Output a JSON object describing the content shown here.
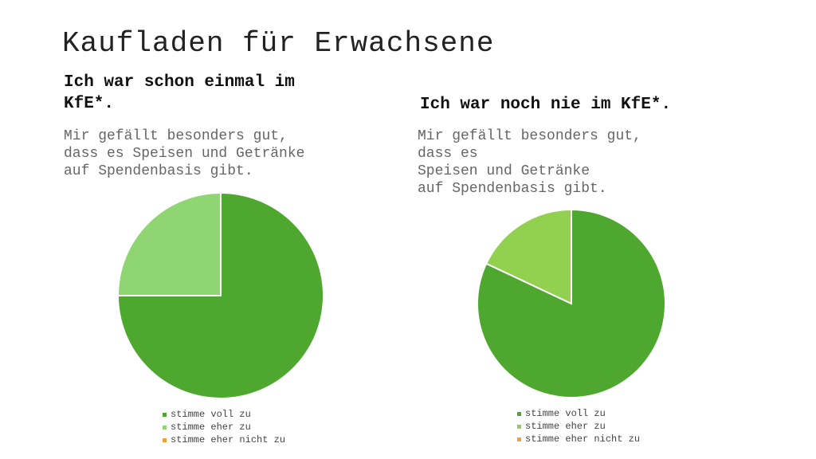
{
  "slide": {
    "title": "Kaufladen für Erwachsene"
  },
  "left": {
    "heading_lines": [
      "Ich war schon einmal im",
      "KfE*."
    ],
    "subtitle_lines": [
      "Mir gefällt besonders gut,",
      "dass es Speisen und Getränke",
      "auf Spendenbasis gibt."
    ]
  },
  "right": {
    "heading_lines": [
      "Ich war noch nie im KfE*."
    ],
    "subtitle_lines": [
      "Mir gefällt besonders gut,",
      "dass es",
      "Speisen und Getränke",
      "auf Spendenbasis gibt."
    ]
  },
  "chart_data": [
    {
      "type": "pie",
      "categories": [
        "stimme voll zu",
        "stimme eher zu",
        "stimme eher nicht zu"
      ],
      "values": [
        75,
        25,
        0
      ],
      "colors": [
        "#4ea72e",
        "#8fd672",
        "#f2a03d"
      ],
      "legend_position": "bottom"
    },
    {
      "type": "pie",
      "categories": [
        "stimme voll zu",
        "stimme eher zu",
        "stimme eher nicht zu"
      ],
      "values": [
        82,
        18,
        0
      ],
      "colors": [
        "#4ea72e",
        "#92d050",
        "#f2a03d"
      ],
      "legend_position": "bottom"
    }
  ]
}
